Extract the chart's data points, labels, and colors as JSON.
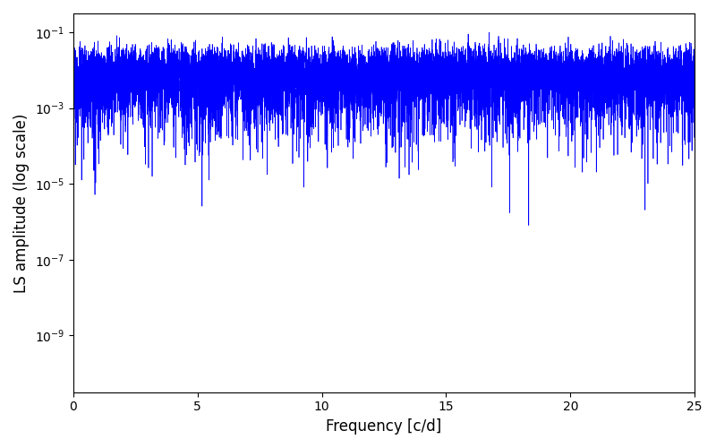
{
  "line_color": "#0000FF",
  "xlabel": "Frequency [c/d]",
  "ylabel": "LS amplitude (log scale)",
  "xlim": [
    0,
    25
  ],
  "ylim_log": [
    -10.5,
    -0.5
  ],
  "xticks": [
    0,
    5,
    10,
    15,
    20,
    25
  ],
  "seed": 42,
  "n_points": 10000,
  "freq_max": 25.0,
  "background_color": "#ffffff",
  "line_width": 0.5
}
